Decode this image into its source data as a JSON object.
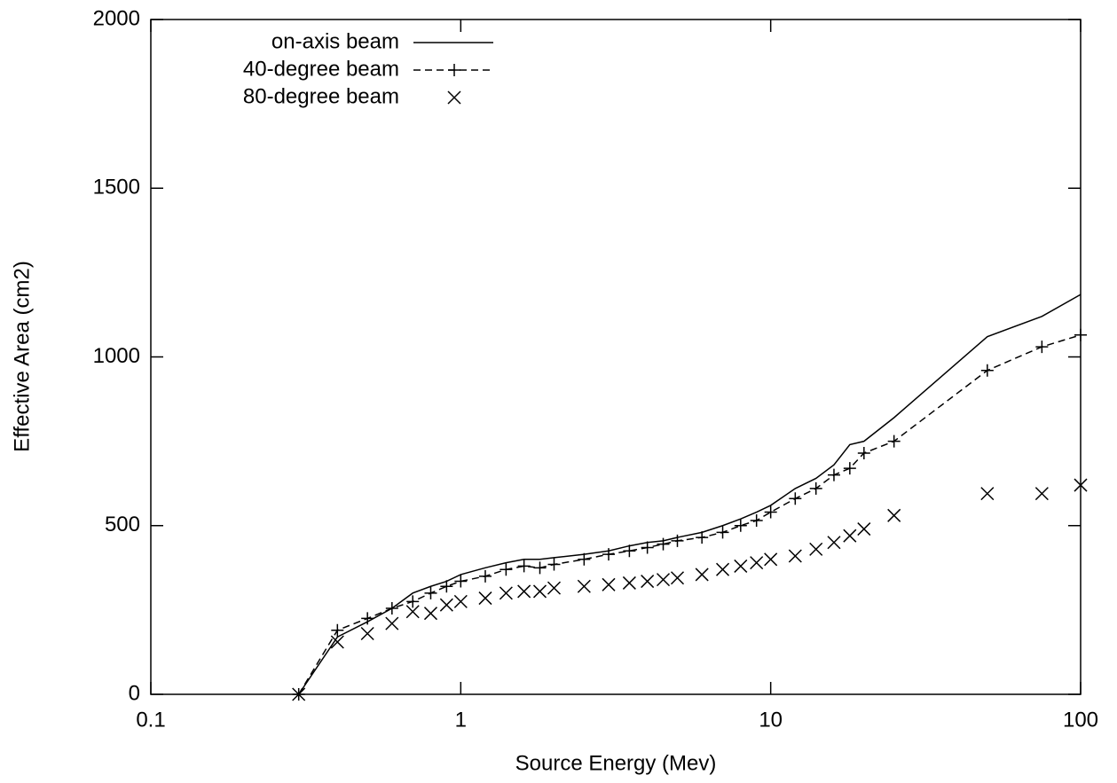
{
  "chart_data": {
    "type": "line",
    "xlabel": "Source Energy (Mev)",
    "ylabel": "Effective Area (cm2)",
    "xscale": "log",
    "xlim": [
      0.1,
      100
    ],
    "xticks": [
      0.1,
      1,
      10,
      100
    ],
    "ylim": [
      0,
      2000
    ],
    "yticks": [
      0,
      500,
      1000,
      1500,
      2000
    ],
    "legend": "upper left",
    "x": [
      0.3,
      0.4,
      0.5,
      0.6,
      0.7,
      0.8,
      0.9,
      1,
      1.2,
      1.4,
      1.6,
      1.8,
      2,
      2.5,
      3,
      3.5,
      4,
      4.5,
      5,
      6,
      7,
      8,
      9,
      10,
      12,
      14,
      16,
      18,
      20,
      25,
      50,
      75,
      100
    ],
    "series": [
      {
        "name": "on-axis beam",
        "color": "#000000",
        "line": "solid",
        "marker": "none",
        "values": [
          0,
          170,
          215,
          255,
          300,
          320,
          335,
          355,
          375,
          390,
          400,
          400,
          405,
          415,
          425,
          440,
          450,
          455,
          465,
          480,
          500,
          520,
          540,
          560,
          610,
          640,
          680,
          740,
          750,
          820,
          1060,
          1120,
          1185
        ]
      },
      {
        "name": "40-degree beam",
        "color": "#000000",
        "line": "dashed",
        "marker": "plus",
        "values": [
          0,
          190,
          225,
          255,
          275,
          300,
          320,
          335,
          350,
          370,
          380,
          375,
          385,
          400,
          415,
          425,
          435,
          445,
          455,
          465,
          480,
          500,
          515,
          540,
          580,
          610,
          650,
          670,
          715,
          750,
          960,
          1030,
          1065
        ]
      },
      {
        "name": "80-degree beam",
        "color": "#000000",
        "line": "none",
        "marker": "cross",
        "values": [
          0,
          155,
          180,
          210,
          245,
          240,
          265,
          275,
          285,
          300,
          305,
          305,
          315,
          320,
          325,
          330,
          335,
          340,
          345,
          355,
          370,
          380,
          390,
          400,
          410,
          430,
          450,
          470,
          490,
          530,
          595,
          595,
          620
        ]
      }
    ]
  }
}
